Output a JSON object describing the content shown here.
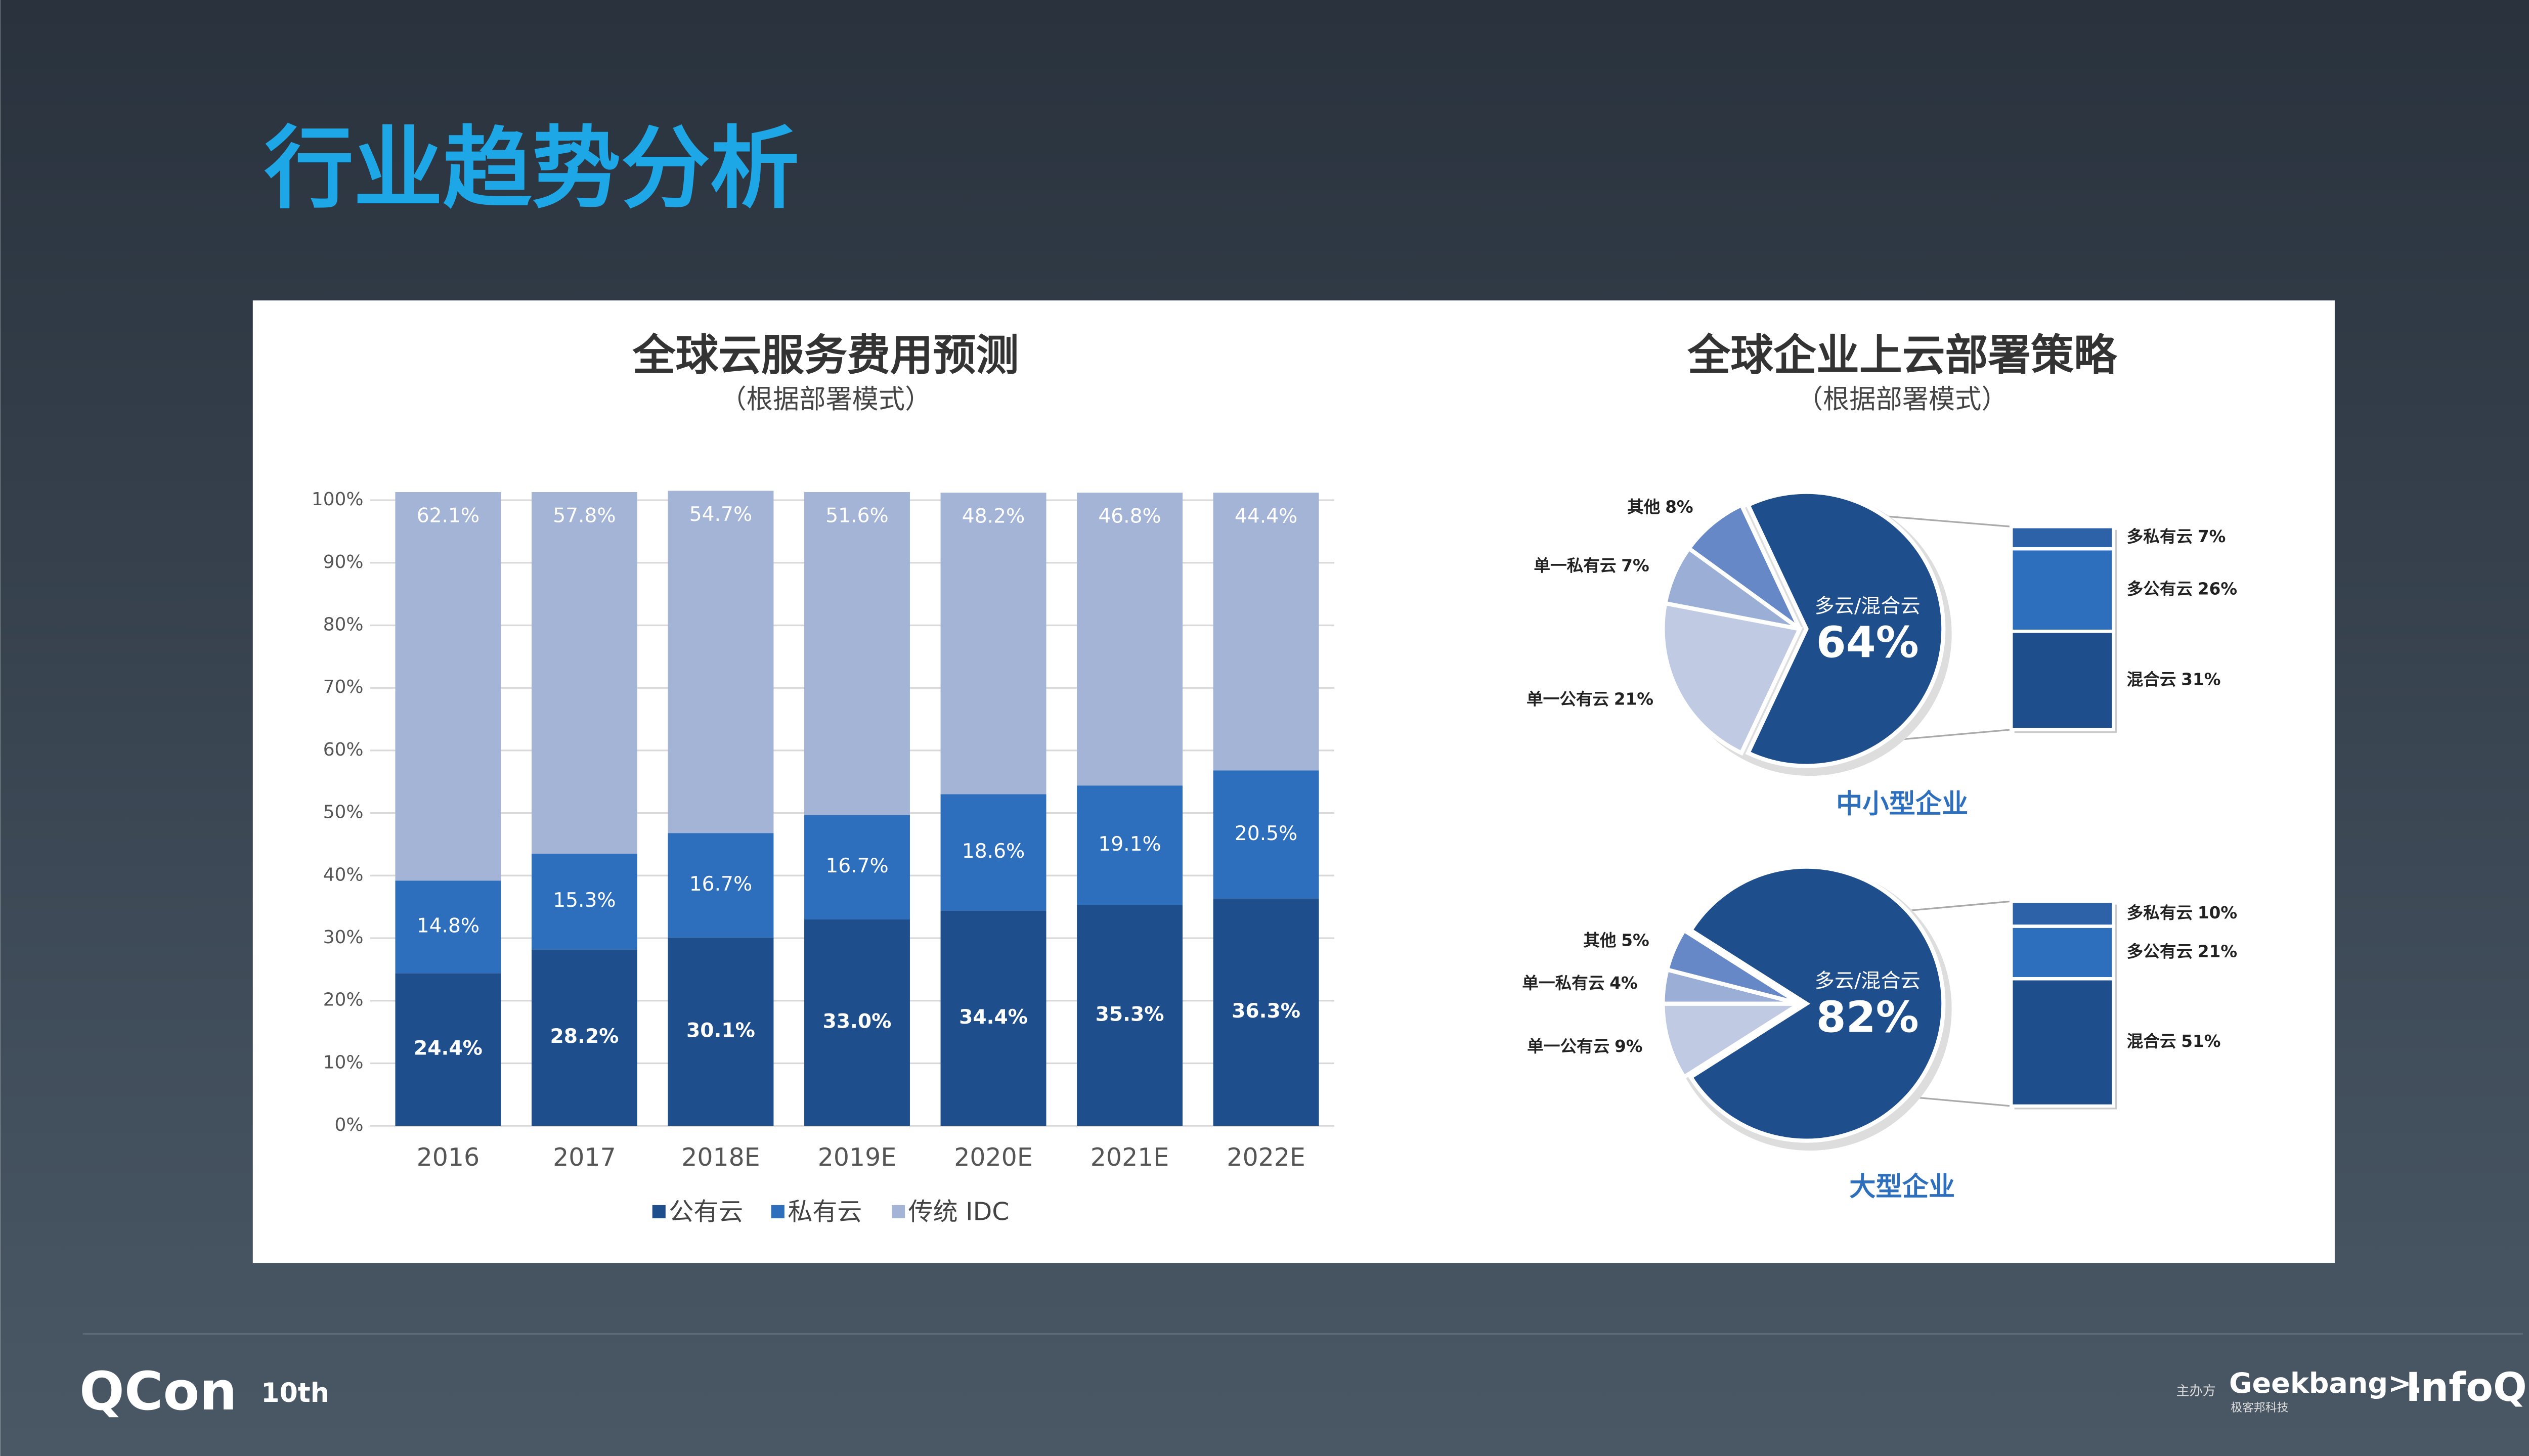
{
  "header": {
    "title": "行业趋势分析"
  },
  "chart_data": [
    {
      "type": "bar",
      "stacked": true,
      "title": "全球云服务费用预测",
      "subtitle": "（根据部署模式）",
      "categories": [
        "2016",
        "2017",
        "2018E",
        "2019E",
        "2020E",
        "2021E",
        "2022E"
      ],
      "series": [
        {
          "name": "公有云",
          "color": "#1f4e8c",
          "values": [
            24.4,
            28.2,
            30.1,
            33.0,
            34.4,
            35.3,
            36.3
          ],
          "value_labels": [
            "24.4%",
            "28.2%",
            "30.1%",
            "33.0%",
            "34.4%",
            "35.3%",
            "36.3%"
          ]
        },
        {
          "name": "私有云",
          "color": "#2e6fbd",
          "values": [
            14.8,
            15.3,
            16.7,
            16.7,
            18.6,
            19.1,
            20.5
          ],
          "value_labels": [
            "14.8%",
            "15.3%",
            "16.7%",
            "16.7%",
            "18.6%",
            "19.1%",
            "20.5%"
          ]
        },
        {
          "name": "传统 IDC",
          "color": "#a4b4d6",
          "values": [
            62.1,
            57.8,
            54.7,
            51.6,
            48.2,
            46.8,
            44.4
          ],
          "value_labels": [
            "62.1%",
            "57.8%",
            "54.7%",
            "51.6%",
            "48.2%",
            "46.8%",
            "44.4%"
          ]
        }
      ],
      "ylim": [
        0,
        100
      ],
      "yticks": [
        {
          "value": 0,
          "label": "0%"
        },
        {
          "value": 10,
          "label": "10%"
        },
        {
          "value": 20,
          "label": "20%"
        },
        {
          "value": 30,
          "label": "30%"
        },
        {
          "value": 40,
          "label": "40%"
        },
        {
          "value": 50,
          "label": "50%"
        },
        {
          "value": 60,
          "label": "60%"
        },
        {
          "value": 70,
          "label": "70%"
        },
        {
          "value": 80,
          "label": "80%"
        },
        {
          "value": 90,
          "label": "90%"
        },
        {
          "value": 100,
          "label": "100%"
        }
      ],
      "grid": true,
      "legend": "bottom"
    },
    {
      "type": "pie",
      "title": "全球企业上云部署策略",
      "subtitle": "（根据部署模式）",
      "label": "中小型企业",
      "categories": [
        "多云/混合云",
        "单一公有云",
        "单一私有云",
        "其他"
      ],
      "values": [
        64,
        21,
        7,
        8
      ],
      "value_labels": [
        "64%",
        "21%",
        "7%",
        "8%"
      ],
      "colors": [
        "#1f4e8c",
        "#c0cbe3",
        "#9aaed6",
        "#6688c7"
      ],
      "breakdown": {
        "categories": [
          "多私有云",
          "多公有云",
          "混合云"
        ],
        "values": [
          7,
          26,
          31
        ],
        "value_labels": [
          "7%",
          "26%",
          "31%"
        ],
        "colors": [
          "#2d62a9",
          "#2e6fbd",
          "#1f4e8c"
        ]
      }
    },
    {
      "type": "pie",
      "label": "大型企业",
      "categories": [
        "多云/混合云",
        "单一公有云",
        "单一私有云",
        "其他"
      ],
      "values": [
        82,
        9,
        4,
        5
      ],
      "value_labels": [
        "82%",
        "9%",
        "4%",
        "5%"
      ],
      "colors": [
        "#1f4e8c",
        "#c0cbe3",
        "#9aaed6",
        "#6688c7"
      ],
      "breakdown": {
        "categories": [
          "多私有云",
          "多公有云",
          "混合云"
        ],
        "values": [
          10,
          21,
          51
        ],
        "value_labels": [
          "10%",
          "21%",
          "51%"
        ],
        "colors": [
          "#2d62a9",
          "#2e6fbd",
          "#1f4e8c"
        ]
      }
    }
  ],
  "footer": {
    "brand": "QCon",
    "edition": "10th",
    "organizer": "主办方",
    "partner": "Geekbang>.",
    "partner_cn": "极客邦科技",
    "media": "InfoQ"
  }
}
